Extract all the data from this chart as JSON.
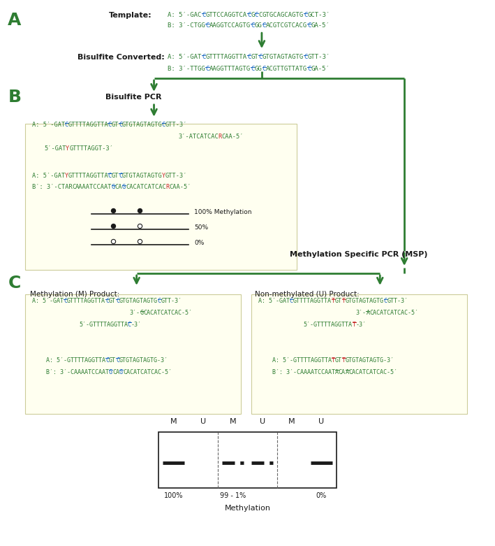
{
  "bg_color": "#ffffff",
  "green": "#2e7d32",
  "blue": "#1565c0",
  "red": "#c62828",
  "bright_green": "#2e7d32",
  "black": "#1a1a1a",
  "gray": "#666666",
  "box_bg": "#fffff0",
  "box_edge": "#cccc99",
  "section_A": "A",
  "section_B": "B",
  "section_C": "C"
}
